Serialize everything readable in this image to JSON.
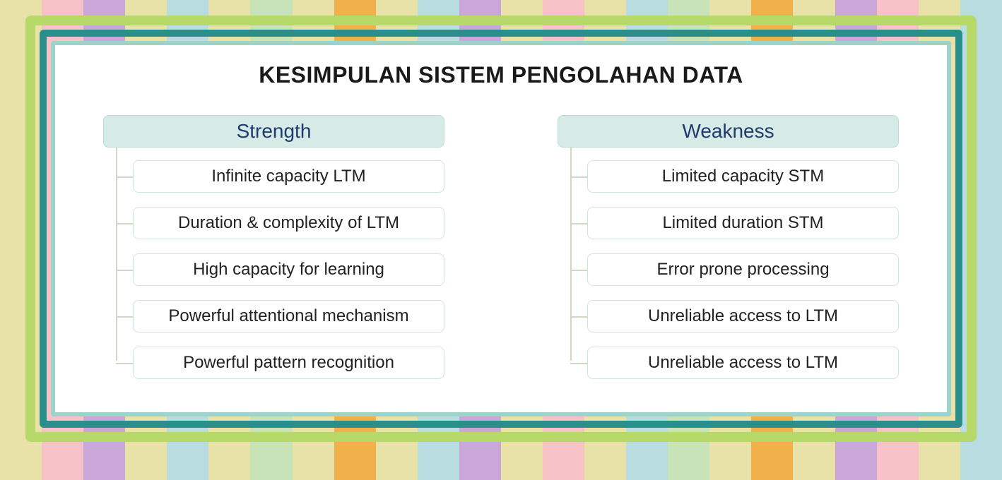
{
  "title": "KESIMPULAN SISTEM PENGOLAHAN DATA",
  "title_fontsize": 32,
  "frame_colors": {
    "outer": "#b6d96a",
    "mid": "#2a8f8b",
    "inner": "#9dd3c8"
  },
  "header_style": {
    "bg": "#d6ebe6",
    "border": "#bcdcd5",
    "text": "#1f3a6e",
    "fontsize": 28
  },
  "item_style": {
    "bg": "#ffffff",
    "border": "#cfe4de",
    "text": "#222222",
    "fontsize": 24
  },
  "connector_color": "#cfd8c7",
  "columns": [
    {
      "header": "Strength",
      "items": [
        "Infinite capacity LTM",
        "Duration & complexity of LTM",
        "High capacity for learning",
        "Powerful attentional mechanism",
        "Powerful pattern recognition"
      ]
    },
    {
      "header": "Weakness",
      "items": [
        "Limited capacity STM",
        "Limited duration STM",
        "Error prone processing",
        "Unreliable access to LTM",
        "Unreliable access to LTM"
      ]
    }
  ],
  "bg_stripe_colors": [
    "#e8e1a8",
    "#f7c1c8",
    "#c9a7d8",
    "#e8e1a8",
    "#b9dce0",
    "#e8e1a8",
    "#c9e3b8",
    "#e8e1a8",
    "#f2b04a",
    "#e8e1a8",
    "#b9dce0",
    "#c9a7d8",
    "#e8e1a8",
    "#f7c1c8",
    "#e8e1a8",
    "#b9dce0",
    "#c9e3b8",
    "#e8e1a8",
    "#f2b04a",
    "#e8e1a8",
    "#c9a7d8",
    "#f7c1c8",
    "#e8e1a8",
    "#b9dce0"
  ]
}
